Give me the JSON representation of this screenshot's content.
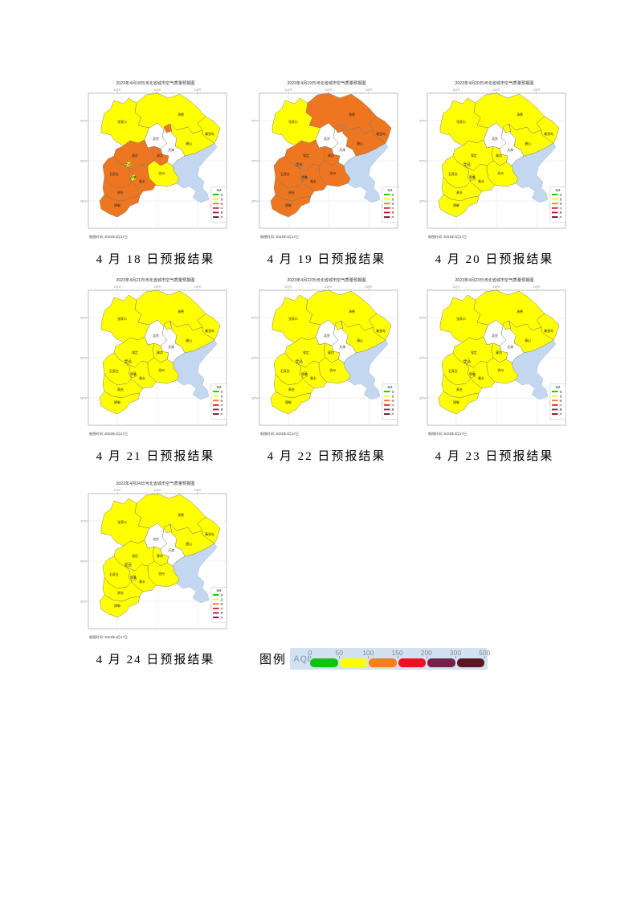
{
  "palette": {
    "yellow": "#ffff00",
    "orange": "#ef7621",
    "white": "#ffffff"
  },
  "sea_color": "#c3d7f0",
  "axis": {
    "top": [
      "114°E",
      "116°E",
      "118°E"
    ],
    "left": [
      "42°N",
      "40°N",
      "38°N"
    ]
  },
  "cities": [
    {
      "key": "zhangjiakou",
      "label": "张家口"
    },
    {
      "key": "chengde",
      "label": "承德"
    },
    {
      "key": "beijing",
      "label": "北京"
    },
    {
      "key": "qinhuangdao",
      "label": "秦皇岛"
    },
    {
      "key": "tangshan",
      "label": "唐山"
    },
    {
      "key": "tianjin",
      "label": "天津"
    },
    {
      "key": "langfang",
      "label": "廊坊"
    },
    {
      "key": "baoding",
      "label": "保定"
    },
    {
      "key": "dingzhou",
      "label": "定州"
    },
    {
      "key": "cangzhou",
      "label": "沧州"
    },
    {
      "key": "shijiazhuang",
      "label": "石家庄"
    },
    {
      "key": "xinji",
      "label": "辛集"
    },
    {
      "key": "hengshui",
      "label": "衡水"
    },
    {
      "key": "xingtai",
      "label": "邢台"
    },
    {
      "key": "handan",
      "label": "邯郸"
    }
  ],
  "map_legend": {
    "header": "等级",
    "items": [
      {
        "label": "优",
        "color": "#00c800"
      },
      {
        "label": "良",
        "color": "#ffff00"
      },
      {
        "label": "轻",
        "color": "#ef7621"
      },
      {
        "label": "中",
        "color": "#f00c16"
      },
      {
        "label": "重",
        "color": "#8c1a45"
      },
      {
        "label": "严",
        "color": "#5c1722"
      }
    ]
  },
  "maps": [
    {
      "title": "2023年4月18日河北省城市空气质量预报图",
      "caption": "4 月 18 日预报结果",
      "footer": "制图时间: 2023年4月17日",
      "levels": {
        "zhangjiakou": "yellow",
        "chengde": "yellow",
        "beijing": "white",
        "qinhuangdao": "yellow",
        "tangshan": "yellow",
        "tianjin": "white",
        "langfang": "orange",
        "langfang_exclave": "orange",
        "baoding": "orange",
        "dingzhou": "yellow",
        "cangzhou": "yellow",
        "shijiazhuang": "orange",
        "xinji": "yellow",
        "hengshui": "orange",
        "xingtai": "orange",
        "handan": "orange"
      }
    },
    {
      "title": "2023年4月19日河北省城市空气质量预报图",
      "caption": "4 月 19 日预报结果",
      "footer": "制图时间: 2023年4月17日",
      "levels": {
        "zhangjiakou": "yellow",
        "chengde": "orange",
        "beijing": "white",
        "qinhuangdao": "orange",
        "tangshan": "orange",
        "tianjin": "white",
        "langfang": "orange",
        "langfang_exclave": "orange",
        "baoding": "orange",
        "dingzhou": "orange",
        "cangzhou": "orange",
        "shijiazhuang": "orange",
        "xinji": "orange",
        "hengshui": "orange",
        "xingtai": "orange",
        "handan": "orange"
      }
    },
    {
      "title": "2023年4月20日河北省城市空气质量预报图",
      "caption": "4 月 20 日预报结果",
      "footer": "制图时间: 2023年4月17日",
      "levels": {
        "zhangjiakou": "yellow",
        "chengde": "yellow",
        "beijing": "white",
        "qinhuangdao": "yellow",
        "tangshan": "yellow",
        "tianjin": "white",
        "langfang": "yellow",
        "langfang_exclave": "yellow",
        "baoding": "yellow",
        "dingzhou": "yellow",
        "cangzhou": "yellow",
        "shijiazhuang": "yellow",
        "xinji": "yellow",
        "hengshui": "yellow",
        "xingtai": "yellow",
        "handan": "yellow"
      }
    },
    {
      "title": "2023年4月21日河北省城市空气质量预报图",
      "caption": "4 月 21 日预报结果",
      "footer": "制图时间: 2023年4月17日",
      "levels": {
        "zhangjiakou": "yellow",
        "chengde": "yellow",
        "beijing": "white",
        "qinhuangdao": "yellow",
        "tangshan": "yellow",
        "tianjin": "white",
        "langfang": "yellow",
        "langfang_exclave": "yellow",
        "baoding": "yellow",
        "dingzhou": "yellow",
        "cangzhou": "yellow",
        "shijiazhuang": "yellow",
        "xinji": "yellow",
        "hengshui": "yellow",
        "xingtai": "yellow",
        "handan": "yellow"
      }
    },
    {
      "title": "2023年4月22日河北省城市空气质量预报图",
      "caption": "4 月 22 日预报结果",
      "footer": "制图时间: 2023年4月17日",
      "levels": {
        "zhangjiakou": "yellow",
        "chengde": "yellow",
        "beijing": "white",
        "qinhuangdao": "yellow",
        "tangshan": "yellow",
        "tianjin": "white",
        "langfang": "yellow",
        "langfang_exclave": "yellow",
        "baoding": "yellow",
        "dingzhou": "yellow",
        "cangzhou": "yellow",
        "shijiazhuang": "yellow",
        "xinji": "yellow",
        "hengshui": "yellow",
        "xingtai": "yellow",
        "handan": "yellow"
      }
    },
    {
      "title": "2023年4月23日河北省城市空气质量预报图",
      "caption": "4 月 23 日预报结果",
      "footer": "制图时间: 2023年4月17日",
      "levels": {
        "zhangjiakou": "yellow",
        "chengde": "yellow",
        "beijing": "white",
        "qinhuangdao": "yellow",
        "tangshan": "yellow",
        "tianjin": "white",
        "langfang": "yellow",
        "langfang_exclave": "yellow",
        "baoding": "yellow",
        "dingzhou": "yellow",
        "cangzhou": "yellow",
        "shijiazhuang": "yellow",
        "xinji": "yellow",
        "hengshui": "yellow",
        "xingtai": "yellow",
        "handan": "yellow"
      }
    },
    {
      "title": "2023年4月24日河北省城市空气质量预报图",
      "caption": "4 月 24 日预报结果",
      "footer": "制图时间: 2023年4月17日",
      "levels": {
        "zhangjiakou": "yellow",
        "chengde": "yellow",
        "beijing": "white",
        "qinhuangdao": "yellow",
        "tangshan": "yellow",
        "tianjin": "white",
        "langfang": "yellow",
        "langfang_exclave": "yellow",
        "baoding": "yellow",
        "dingzhou": "yellow",
        "cangzhou": "yellow",
        "shijiazhuang": "yellow",
        "xinji": "yellow",
        "hengshui": "yellow",
        "xingtai": "yellow",
        "handan": "yellow"
      }
    }
  ],
  "bottom_legend": {
    "label": "图例",
    "aqi_label": "AQI",
    "ticks": [
      "0",
      "50",
      "100",
      "150",
      "200",
      "300",
      "500"
    ],
    "segment_colors": [
      "#12c212",
      "#ffff00",
      "#f0811f",
      "#ef1020",
      "#76204a",
      "#5c1722"
    ]
  }
}
